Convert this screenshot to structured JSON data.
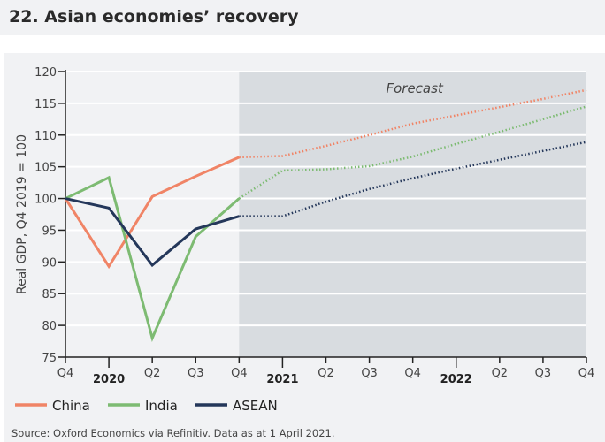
{
  "title": "22. Asian economies’ recovery",
  "source": "Source: Oxford Economics via Refinitiv. Data as at 1 April 2021.",
  "chart_data": {
    "type": "line",
    "ylabel": "Real GDP,  Q4 2019 = 100",
    "ylim": [
      75,
      120
    ],
    "yticks": [
      75,
      80,
      85,
      90,
      95,
      100,
      105,
      110,
      115,
      120
    ],
    "x": [
      "Q4 2019",
      "Q1 2020",
      "Q2 2020",
      "Q3 2020",
      "Q4 2020",
      "Q1 2021",
      "Q2 2021",
      "Q3 2021",
      "Q4 2021",
      "Q1 2022",
      "Q2 2022",
      "Q3 2022",
      "Q4 2022"
    ],
    "xtick_labels": [
      "Q4",
      "2020",
      "Q2",
      "Q3",
      "Q4",
      "2021",
      "Q2",
      "Q3",
      "Q4",
      "2022",
      "Q2",
      "Q3",
      "Q4"
    ],
    "forecast_label": "Forecast",
    "forecast_start_index": 4,
    "grid": "horizontal",
    "legend_position": "bottom-left",
    "series": [
      {
        "name": "China",
        "color": "#f08466",
        "values": [
          100,
          89.3,
          100.3,
          103.5,
          106.5,
          106.7,
          108.3,
          110,
          111.8,
          113.1,
          114.4,
          115.7,
          117.1
        ]
      },
      {
        "name": "India",
        "color": "#7dbb72",
        "values": [
          100,
          103.3,
          78,
          94,
          100,
          104.4,
          104.6,
          105.1,
          106.6,
          108.6,
          110.5,
          112.5,
          114.5
        ]
      },
      {
        "name": "ASEAN",
        "color": "#24375a",
        "values": [
          100,
          98.5,
          89.5,
          95.2,
          97.2,
          97.2,
          99.5,
          101.5,
          103.2,
          104.7,
          106.1,
          107.5,
          108.9
        ]
      }
    ]
  }
}
